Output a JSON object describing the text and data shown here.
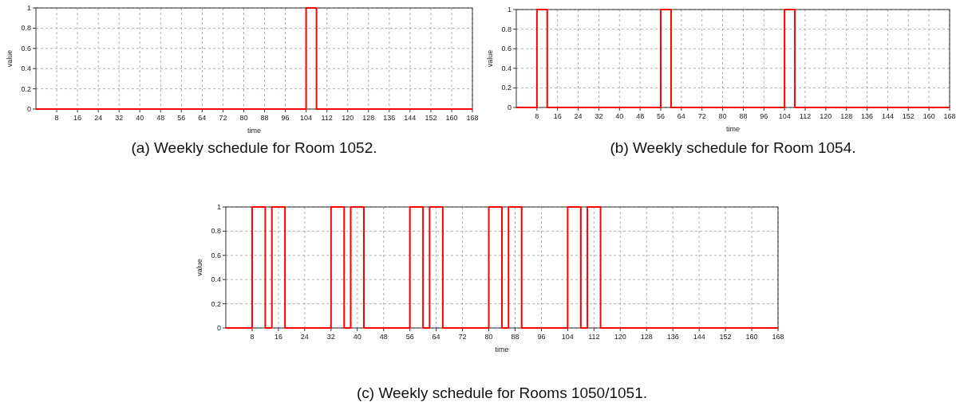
{
  "chart_data": [
    {
      "type": "step",
      "title": "(a) Weekly schedule for Room 1052.",
      "xlabel": "time",
      "ylabel": "value",
      "x": [
        0,
        104,
        108,
        168
      ],
      "series": [
        {
          "color": "#ff0000",
          "values": [
            0,
            1,
            0,
            0
          ]
        }
      ],
      "xlim": [
        0,
        168
      ],
      "ylim": [
        0,
        1
      ],
      "xticks": [
        8,
        16,
        24,
        32,
        40,
        48,
        56,
        64,
        72,
        80,
        88,
        96,
        104,
        112,
        120,
        128,
        136,
        144,
        152,
        160,
        168
      ],
      "yticks": [
        0,
        0.2,
        0.4,
        0.6,
        0.8,
        1
      ],
      "grid": true,
      "line_style": "solid",
      "marker": "none"
    },
    {
      "type": "step",
      "title": "(b) Weekly schedule for Room 1054.",
      "xlabel": "time",
      "ylabel": "value",
      "x": [
        0,
        8,
        12,
        56,
        60,
        104,
        108,
        168
      ],
      "series": [
        {
          "color": "#ff0000",
          "values": [
            0,
            1,
            0,
            1,
            0,
            1,
            0,
            0
          ]
        }
      ],
      "xlim": [
        0,
        168
      ],
      "ylim": [
        0,
        1
      ],
      "xticks": [
        8,
        16,
        24,
        32,
        40,
        48,
        56,
        64,
        72,
        80,
        88,
        96,
        104,
        112,
        120,
        128,
        136,
        144,
        152,
        160,
        168
      ],
      "yticks": [
        0,
        0.2,
        0.4,
        0.6,
        0.8,
        1
      ],
      "grid": true,
      "line_style": "solid",
      "marker": "none"
    },
    {
      "type": "step",
      "title": "(c) Weekly schedule for Rooms 1050/1051.",
      "xlabel": "time",
      "ylabel": "value",
      "x": [
        0,
        8,
        12,
        14,
        18,
        32,
        36,
        38,
        42,
        56,
        60,
        62,
        66,
        80,
        84,
        86,
        90,
        104,
        108,
        110,
        114,
        168
      ],
      "series": [
        {
          "color": "#ff0000",
          "values": [
            0,
            1,
            0,
            1,
            0,
            1,
            0,
            1,
            0,
            1,
            0,
            1,
            0,
            1,
            0,
            1,
            0,
            1,
            0,
            1,
            0,
            0
          ]
        }
      ],
      "xlim": [
        0,
        168
      ],
      "ylim": [
        0,
        1
      ],
      "xticks": [
        8,
        16,
        24,
        32,
        40,
        48,
        56,
        64,
        72,
        80,
        88,
        96,
        104,
        112,
        120,
        128,
        136,
        144,
        152,
        160,
        168
      ],
      "yticks": [
        0,
        0.2,
        0.4,
        0.6,
        0.8,
        1
      ],
      "grid": true,
      "line_style": "solid",
      "marker": "none"
    }
  ]
}
